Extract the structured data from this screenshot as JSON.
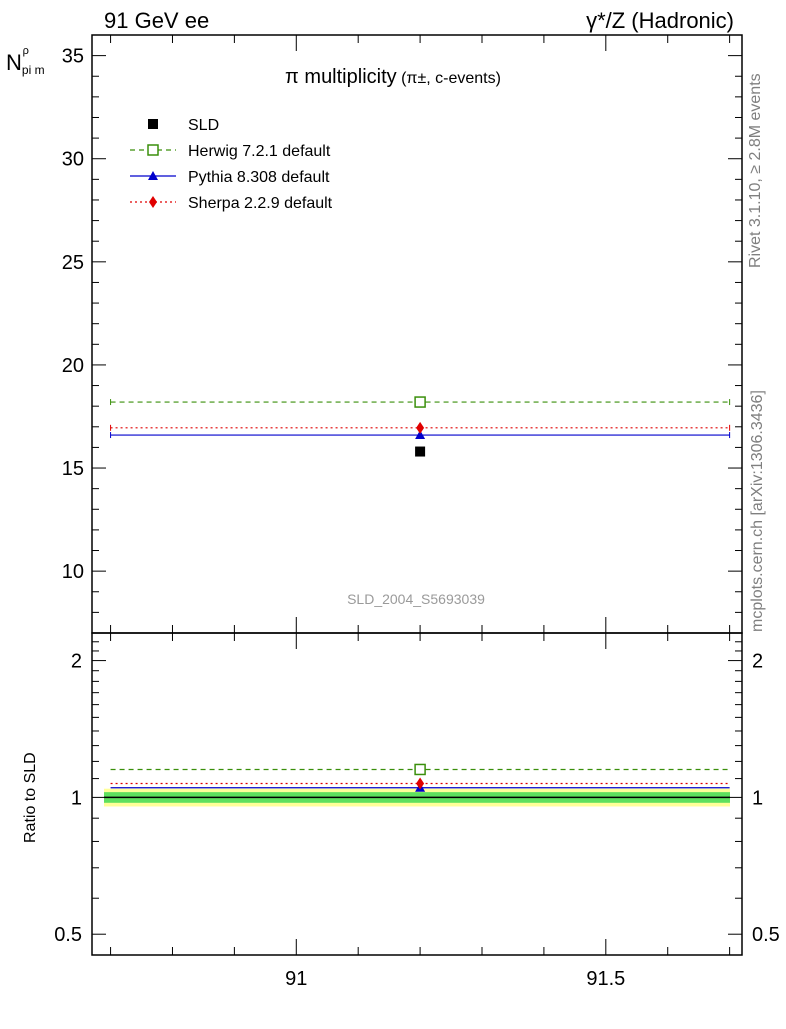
{
  "header": {
    "left": "91 GeV ee",
    "right": "γ*/Z (Hadronic)"
  },
  "side_labels": {
    "rivet": "Rivet 3.1.10, ≥ 2.8M events",
    "mcplots": "mcplots.cern.ch [arXiv:1306.3436]"
  },
  "colors": {
    "data": "#000000",
    "herwig": "#3a8f0b",
    "pythia": "#0000cc",
    "sherpa": "#e00000",
    "band_inner": "#5ee05e",
    "band_outer": "#ffff99",
    "watermark": "#9a9a9a"
  },
  "chart_data": [
    {
      "type": "scatter",
      "title": "π multiplicity",
      "subtitle": "(π±, c-events)",
      "ylabel_main": "N",
      "ylabel_sub": "pi m",
      "ylabel_sup": "ρ",
      "xlim": [
        90.67,
        91.72
      ],
      "ylim": [
        7,
        36
      ],
      "x_ticks": [
        91,
        91.5
      ],
      "y_ticks": [
        10,
        15,
        20,
        25,
        30,
        35
      ],
      "grid": false,
      "legend_position": "top-left",
      "watermark": "SLD_2004_S5693039",
      "x_range": [
        90.7,
        91.7
      ],
      "series": [
        {
          "name": "SLD",
          "key": "data",
          "marker": "filled-square",
          "line": "none",
          "x": [
            91.2
          ],
          "y": [
            15.8
          ]
        },
        {
          "name": "Herwig 7.2.1 default",
          "key": "herwig",
          "marker": "open-square",
          "line": "dashed",
          "x": [
            91.2
          ],
          "y": [
            18.2
          ]
        },
        {
          "name": "Pythia 8.308 default",
          "key": "pythia",
          "marker": "triangle",
          "line": "solid",
          "x": [
            91.2
          ],
          "y": [
            16.6
          ]
        },
        {
          "name": "Sherpa 2.2.9 default",
          "key": "sherpa",
          "marker": "diamond",
          "line": "dotted",
          "x": [
            91.2
          ],
          "y": [
            16.95
          ]
        }
      ]
    },
    {
      "type": "scatter",
      "ylabel": "Ratio to SLD",
      "xlim": [
        90.67,
        91.72
      ],
      "ylim": [
        0.45,
        2.3
      ],
      "x_ticks": [
        91,
        91.5
      ],
      "y_ticks": [
        0.5,
        1,
        2
      ],
      "y_tick_labels": [
        "0.5",
        "1",
        "2"
      ],
      "log_y": true,
      "grid": false,
      "band": {
        "inner": [
          0.973,
          1.027
        ],
        "outer": [
          0.955,
          1.045
        ]
      },
      "series": [
        {
          "name": "Herwig 7.2.1 default",
          "key": "herwig",
          "x": [
            91.2
          ],
          "y": [
            1.152
          ]
        },
        {
          "name": "Pythia 8.308 default",
          "key": "pythia",
          "x": [
            91.2
          ],
          "y": [
            1.05
          ]
        },
        {
          "name": "Sherpa 2.2.9 default",
          "key": "sherpa",
          "x": [
            91.2
          ],
          "y": [
            1.073
          ]
        }
      ]
    }
  ]
}
